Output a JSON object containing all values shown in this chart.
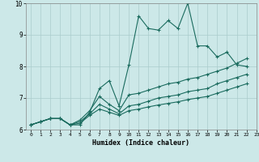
{
  "xlabel": "Humidex (Indice chaleur)",
  "xlim": [
    -0.5,
    23
  ],
  "ylim": [
    6,
    10
  ],
  "background_color": "#cce8e8",
  "grid_color": "#aacccc",
  "line_color": "#1a6b5e",
  "x_ticks": [
    0,
    1,
    2,
    3,
    4,
    5,
    6,
    7,
    8,
    9,
    10,
    11,
    12,
    13,
    14,
    15,
    16,
    17,
    18,
    19,
    20,
    21,
    22,
    23
  ],
  "y_ticks": [
    6,
    7,
    8,
    9,
    10
  ],
  "series": [
    {
      "x": [
        0,
        1,
        2,
        3,
        4,
        5,
        6,
        7,
        8,
        9,
        10,
        11,
        12,
        13,
        14,
        15,
        16,
        17,
        18,
        19,
        20,
        21,
        22
      ],
      "y": [
        6.15,
        6.25,
        6.35,
        6.35,
        6.15,
        6.15,
        6.55,
        7.3,
        7.55,
        6.75,
        8.05,
        9.6,
        9.2,
        9.15,
        9.45,
        9.2,
        10.0,
        8.65,
        8.65,
        8.3,
        8.45,
        8.05,
        8.0
      ]
    },
    {
      "x": [
        0,
        1,
        2,
        3,
        4,
        5,
        6,
        7,
        8,
        9,
        10,
        11,
        12,
        13,
        14,
        15,
        16,
        17,
        18,
        19,
        20,
        21,
        22
      ],
      "y": [
        6.15,
        6.25,
        6.35,
        6.35,
        6.15,
        6.3,
        6.6,
        7.05,
        6.8,
        6.6,
        7.1,
        7.15,
        7.25,
        7.35,
        7.45,
        7.5,
        7.6,
        7.65,
        7.75,
        7.85,
        7.95,
        8.1,
        8.25
      ]
    },
    {
      "x": [
        0,
        1,
        2,
        3,
        4,
        5,
        6,
        7,
        8,
        9,
        10,
        11,
        12,
        13,
        14,
        15,
        16,
        17,
        18,
        19,
        20,
        21,
        22
      ],
      "y": [
        6.15,
        6.25,
        6.35,
        6.35,
        6.15,
        6.25,
        6.5,
        6.8,
        6.65,
        6.5,
        6.75,
        6.8,
        6.9,
        7.0,
        7.05,
        7.1,
        7.2,
        7.25,
        7.3,
        7.45,
        7.55,
        7.65,
        7.75
      ]
    },
    {
      "x": [
        0,
        1,
        2,
        3,
        4,
        5,
        6,
        7,
        8,
        9,
        10,
        11,
        12,
        13,
        14,
        15,
        16,
        17,
        18,
        19,
        20,
        21,
        22
      ],
      "y": [
        6.15,
        6.25,
        6.35,
        6.35,
        6.15,
        6.2,
        6.45,
        6.65,
        6.55,
        6.45,
        6.6,
        6.65,
        6.72,
        6.78,
        6.83,
        6.88,
        6.95,
        7.0,
        7.05,
        7.15,
        7.25,
        7.35,
        7.45
      ]
    }
  ]
}
